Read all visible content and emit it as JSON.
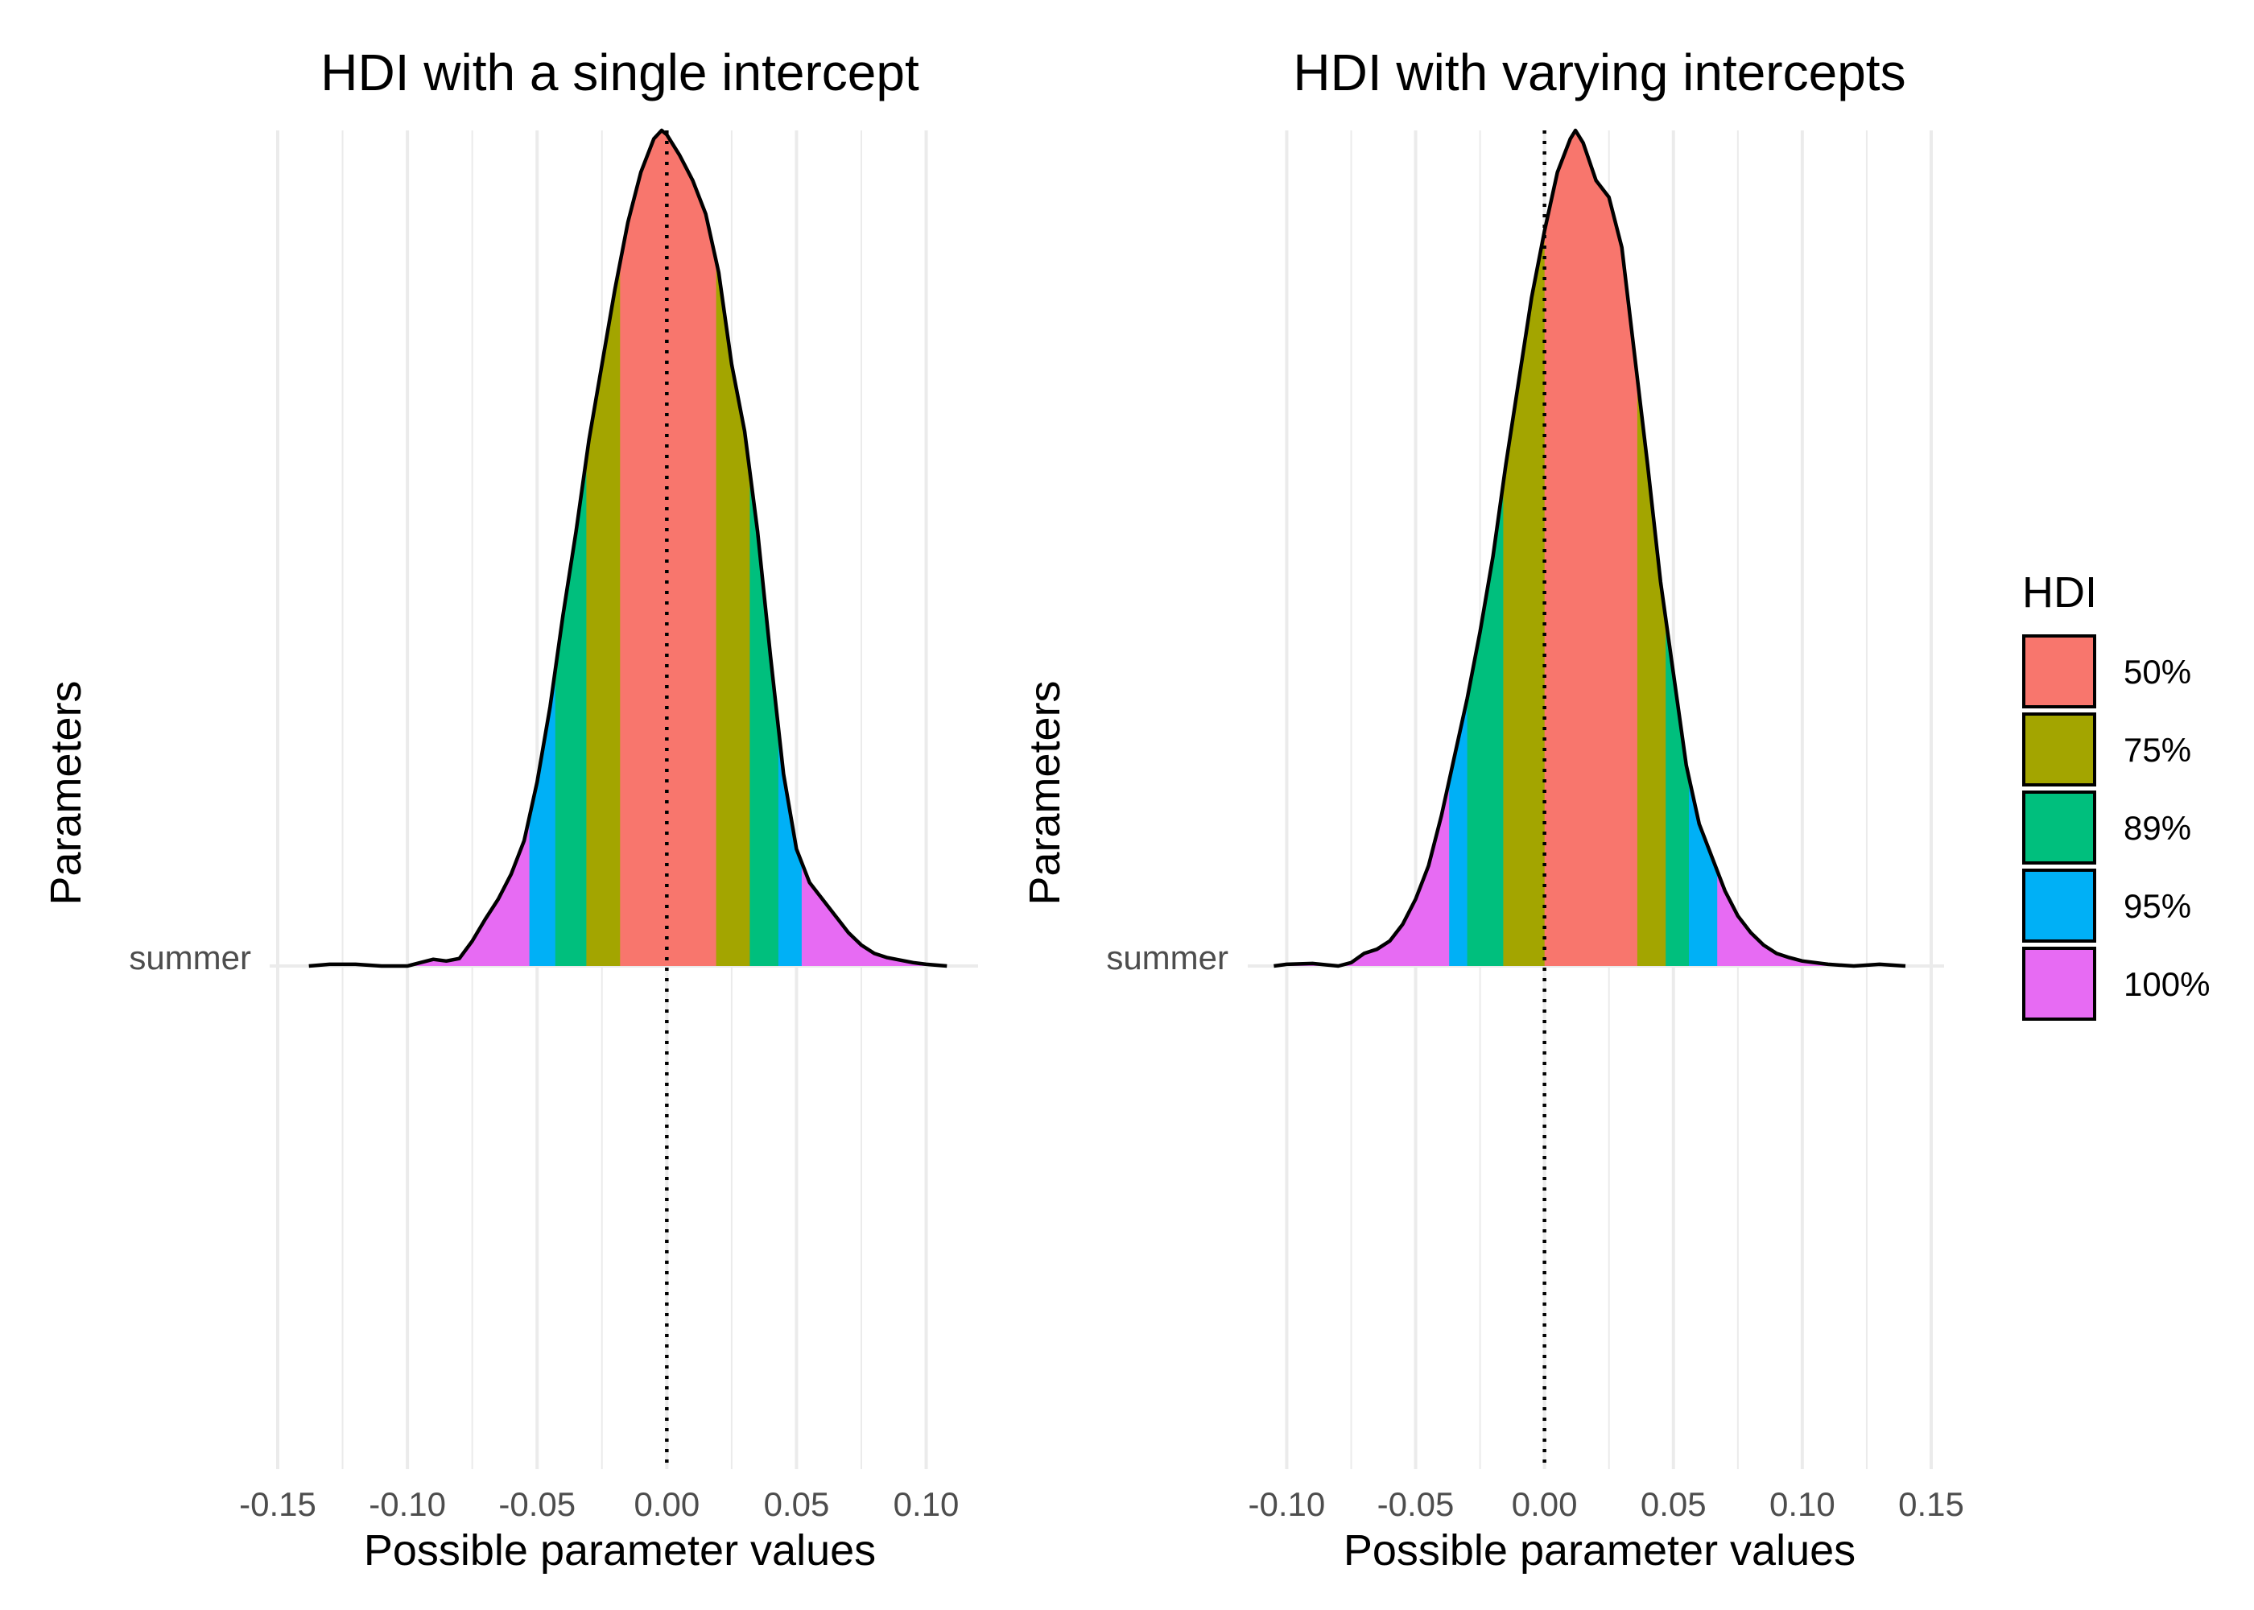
{
  "legend": {
    "title": "HDI",
    "items": [
      {
        "label": "50%",
        "color": "#F8766D"
      },
      {
        "label": "75%",
        "color": "#A3A500"
      },
      {
        "label": "89%",
        "color": "#00BF7D"
      },
      {
        "label": "95%",
        "color": "#00B0F6"
      },
      {
        "label": "100%",
        "color": "#E76BF3"
      }
    ]
  },
  "chart_data": [
    {
      "type": "area",
      "title": "HDI with a single intercept",
      "xlabel": "Possible parameter values",
      "ylabel": "Parameters",
      "y_category": "summer",
      "xlim": [
        -0.15,
        0.12
      ],
      "x_ticks": [
        -0.15,
        -0.1,
        -0.05,
        0.0,
        0.05,
        0.1
      ],
      "x_tick_labels": [
        "-0.15",
        "-0.10",
        "-0.05",
        "0.00",
        "0.05",
        "0.10"
      ],
      "reference_line_x": 0,
      "density": [
        [
          -0.138,
          0.0
        ],
        [
          -0.13,
          0.002
        ],
        [
          -0.12,
          0.002
        ],
        [
          -0.11,
          0.0
        ],
        [
          -0.1,
          0.0
        ],
        [
          -0.095,
          0.004
        ],
        [
          -0.09,
          0.008
        ],
        [
          -0.085,
          0.006
        ],
        [
          -0.08,
          0.009
        ],
        [
          -0.075,
          0.03
        ],
        [
          -0.07,
          0.056
        ],
        [
          -0.065,
          0.08
        ],
        [
          -0.06,
          0.11
        ],
        [
          -0.055,
          0.15
        ],
        [
          -0.05,
          0.22
        ],
        [
          -0.045,
          0.31
        ],
        [
          -0.04,
          0.42
        ],
        [
          -0.035,
          0.52
        ],
        [
          -0.03,
          0.63
        ],
        [
          -0.025,
          0.72
        ],
        [
          -0.02,
          0.81
        ],
        [
          -0.015,
          0.89
        ],
        [
          -0.01,
          0.95
        ],
        [
          -0.005,
          0.99
        ],
        [
          -0.002,
          1.0
        ],
        [
          0.0,
          0.995
        ],
        [
          0.005,
          0.97
        ],
        [
          0.01,
          0.94
        ],
        [
          0.015,
          0.9
        ],
        [
          0.02,
          0.83
        ],
        [
          0.025,
          0.72
        ],
        [
          0.03,
          0.64
        ],
        [
          0.035,
          0.52
        ],
        [
          0.04,
          0.37
        ],
        [
          0.045,
          0.23
        ],
        [
          0.05,
          0.14
        ],
        [
          0.055,
          0.1
        ],
        [
          0.06,
          0.08
        ],
        [
          0.065,
          0.06
        ],
        [
          0.07,
          0.04
        ],
        [
          0.075,
          0.025
        ],
        [
          0.08,
          0.015
        ],
        [
          0.085,
          0.01
        ],
        [
          0.09,
          0.007
        ],
        [
          0.095,
          0.004
        ],
        [
          0.1,
          0.002
        ],
        [
          0.108,
          0.0
        ]
      ],
      "hdi_bounds": {
        "50%": [
          -0.018,
          0.019
        ],
        "75%": [
          -0.031,
          0.032
        ],
        "89%": [
          -0.043,
          0.043
        ],
        "95%": [
          -0.053,
          0.052
        ],
        "100%": [
          -0.138,
          0.108
        ]
      }
    },
    {
      "type": "area",
      "title": "HDI with varying intercepts",
      "xlabel": "Possible parameter values",
      "ylabel": "Parameters",
      "y_category": "summer",
      "xlim": [
        -0.112,
        0.155
      ],
      "x_ticks": [
        -0.1,
        -0.05,
        0.0,
        0.05,
        0.1,
        0.15
      ],
      "x_tick_labels": [
        "-0.10",
        "-0.05",
        "0.00",
        "0.05",
        "0.10",
        "0.15"
      ],
      "reference_line_x": 0,
      "density": [
        [
          -0.105,
          0.0
        ],
        [
          -0.1,
          0.002
        ],
        [
          -0.09,
          0.003
        ],
        [
          -0.08,
          0.0
        ],
        [
          -0.075,
          0.004
        ],
        [
          -0.07,
          0.015
        ],
        [
          -0.065,
          0.02
        ],
        [
          -0.06,
          0.03
        ],
        [
          -0.055,
          0.05
        ],
        [
          -0.05,
          0.08
        ],
        [
          -0.045,
          0.12
        ],
        [
          -0.04,
          0.18
        ],
        [
          -0.035,
          0.25
        ],
        [
          -0.03,
          0.32
        ],
        [
          -0.025,
          0.4
        ],
        [
          -0.02,
          0.49
        ],
        [
          -0.015,
          0.6
        ],
        [
          -0.01,
          0.7
        ],
        [
          -0.005,
          0.8
        ],
        [
          0.0,
          0.88
        ],
        [
          0.005,
          0.95
        ],
        [
          0.01,
          0.99
        ],
        [
          0.012,
          1.0
        ],
        [
          0.015,
          0.985
        ],
        [
          0.02,
          0.94
        ],
        [
          0.025,
          0.92
        ],
        [
          0.03,
          0.86
        ],
        [
          0.035,
          0.73
        ],
        [
          0.04,
          0.6
        ],
        [
          0.045,
          0.46
        ],
        [
          0.05,
          0.35
        ],
        [
          0.055,
          0.24
        ],
        [
          0.06,
          0.17
        ],
        [
          0.065,
          0.13
        ],
        [
          0.07,
          0.09
        ],
        [
          0.075,
          0.06
        ],
        [
          0.08,
          0.04
        ],
        [
          0.085,
          0.025
        ],
        [
          0.09,
          0.015
        ],
        [
          0.095,
          0.01
        ],
        [
          0.1,
          0.006
        ],
        [
          0.11,
          0.002
        ],
        [
          0.12,
          0.0
        ],
        [
          0.13,
          0.002
        ],
        [
          0.14,
          0.0
        ]
      ],
      "hdi_bounds": {
        "50%": [
          0.0,
          0.036
        ],
        "75%": [
          -0.016,
          0.047
        ],
        "89%": [
          -0.03,
          0.056
        ],
        "95%": [
          -0.037,
          0.067
        ],
        "100%": [
          -0.105,
          0.14
        ]
      }
    }
  ]
}
